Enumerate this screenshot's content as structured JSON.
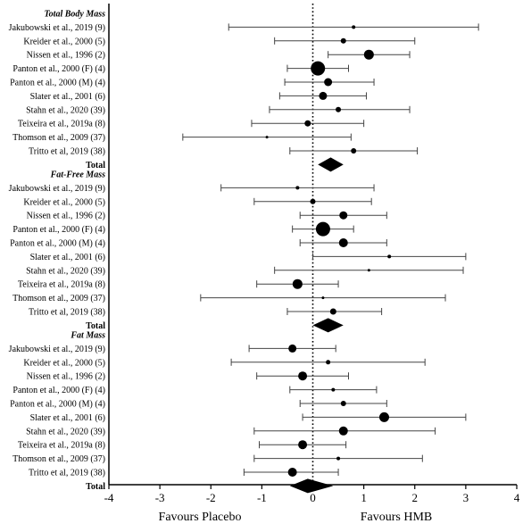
{
  "chart_data": {
    "type": "forest",
    "xlim": [
      -4,
      4
    ],
    "x_ticks": [
      "-4",
      "-3",
      "-2",
      "-1",
      "0",
      "1",
      "2",
      "3",
      "4"
    ],
    "reference_line": 0,
    "favours_left": "Favours Placebo",
    "favours_right": "Favours HMB",
    "sections": [
      {
        "title": "Total Body Mass",
        "total_label": "Total",
        "total": {
          "est": 0.35,
          "lo": 0.1,
          "hi": 0.6
        },
        "studies": [
          {
            "label": "Jakubowski et al., 2019 (9)",
            "est": 0.8,
            "lo": -1.65,
            "hi": 3.25,
            "size": 2
          },
          {
            "label": "Kreider et al., 2000 (5)",
            "est": 0.6,
            "lo": -0.75,
            "hi": 2.0,
            "size": 3
          },
          {
            "label": "Nissen et al., 1996 (2)",
            "est": 1.1,
            "lo": 0.3,
            "hi": 1.9,
            "size": 5.5
          },
          {
            "label": "Panton et al., 2000 (F) (4)",
            "est": 0.1,
            "lo": -0.5,
            "hi": 0.7,
            "size": 8
          },
          {
            "label": "Panton et al., 2000 (M) (4)",
            "est": 0.3,
            "lo": -0.55,
            "hi": 1.2,
            "size": 4.5
          },
          {
            "label": "Slater et al., 2001 (6)",
            "est": 0.2,
            "lo": -0.65,
            "hi": 1.05,
            "size": 4.5
          },
          {
            "label": "Stahn et al., 2020 (39)",
            "est": 0.5,
            "lo": -0.85,
            "hi": 1.9,
            "size": 3
          },
          {
            "label": "Teixeira et al., 2019a (8)",
            "est": -0.1,
            "lo": -1.2,
            "hi": 1.0,
            "size": 3.5
          },
          {
            "label": "Thomson et al., 2009 (37)",
            "est": -0.9,
            "lo": -2.55,
            "hi": 0.75,
            "size": 1.5
          },
          {
            "label": "Tritto et al, 2019 (38)",
            "est": 0.8,
            "lo": -0.45,
            "hi": 2.05,
            "size": 3
          }
        ]
      },
      {
        "title": "Fat-Free Mass",
        "total_label": "Total",
        "total": {
          "est": 0.3,
          "lo": 0.0,
          "hi": 0.6
        },
        "studies": [
          {
            "label": "Jakubowski et al., 2019 (9)",
            "est": -0.3,
            "lo": -1.8,
            "hi": 1.2,
            "size": 2
          },
          {
            "label": "Kreider et al., 2000 (5)",
            "est": 0.0,
            "lo": -1.15,
            "hi": 1.15,
            "size": 3
          },
          {
            "label": "Nissen et al., 1996 (2)",
            "est": 0.6,
            "lo": -0.25,
            "hi": 1.45,
            "size": 4.5
          },
          {
            "label": "Panton et al., 2000 (F) (4)",
            "est": 0.2,
            "lo": -0.4,
            "hi": 0.8,
            "size": 8
          },
          {
            "label": "Panton et al., 2000 (M) (4)",
            "est": 0.6,
            "lo": -0.25,
            "hi": 1.45,
            "size": 5
          },
          {
            "label": "Slater et al., 2001 (6)",
            "est": 1.5,
            "lo": 0.0,
            "hi": 3.0,
            "size": 2
          },
          {
            "label": "Stahn et al., 2020 (39)",
            "est": 1.1,
            "lo": -0.75,
            "hi": 2.95,
            "size": 1.5
          },
          {
            "label": "Teixeira et al., 2019a (8)",
            "est": -0.3,
            "lo": -1.1,
            "hi": 0.5,
            "size": 5.5
          },
          {
            "label": "Thomson et al., 2009 (37)",
            "est": 0.2,
            "lo": -2.2,
            "hi": 2.6,
            "size": 1.5
          },
          {
            "label": "Tritto et al, 2019 (38)",
            "est": 0.4,
            "lo": -0.5,
            "hi": 1.35,
            "size": 3.5
          }
        ]
      },
      {
        "title": "Fat Mass",
        "total_label": "Total",
        "total": {
          "est": -0.1,
          "lo": -0.45,
          "hi": 0.4
        },
        "studies": [
          {
            "label": "Jakubowski et al., 2019 (9)",
            "est": -0.4,
            "lo": -1.25,
            "hi": 0.45,
            "size": 4.5
          },
          {
            "label": "Kreider et al., 2000 (5)",
            "est": 0.3,
            "lo": -1.6,
            "hi": 2.2,
            "size": 2.5
          },
          {
            "label": "Nissen et al., 1996 (2)",
            "est": -0.2,
            "lo": -1.1,
            "hi": 0.7,
            "size": 5
          },
          {
            "label": "Panton et al., 2000 (F) (4)",
            "est": 0.4,
            "lo": -0.45,
            "hi": 1.25,
            "size": 2
          },
          {
            "label": "Panton et al., 2000 (M) (4)",
            "est": 0.6,
            "lo": -0.25,
            "hi": 1.45,
            "size": 3
          },
          {
            "label": "Slater et al., 2001 (6)",
            "est": 1.4,
            "lo": -0.2,
            "hi": 3.0,
            "size": 5.5
          },
          {
            "label": "Stahn et al., 2020 (39)",
            "est": 0.6,
            "lo": -1.15,
            "hi": 2.4,
            "size": 5
          },
          {
            "label": "Teixeira et al., 2019a (8)",
            "est": -0.2,
            "lo": -1.05,
            "hi": 0.65,
            "size": 5
          },
          {
            "label": "Thomson et al., 2009 (37)",
            "est": 0.5,
            "lo": -1.15,
            "hi": 2.15,
            "size": 2
          },
          {
            "label": "Tritto et al, 2019 (38)",
            "est": -0.4,
            "lo": -1.35,
            "hi": 0.5,
            "size": 5
          }
        ]
      }
    ]
  }
}
